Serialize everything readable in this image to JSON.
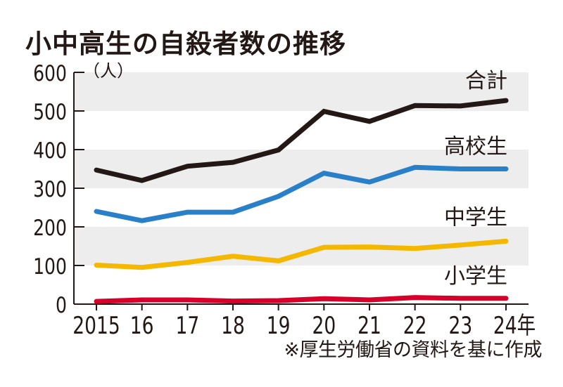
{
  "title": "小中高生の自殺者数の推移",
  "source_note": "※厚生労働省の資料を基に作成",
  "chart_data": {
    "type": "line",
    "title": "小中高生の自殺者数の推移",
    "xlabel": "",
    "ylabel": "",
    "y_unit": "（人）",
    "x_suffix": "年",
    "x": [
      "2015",
      "16",
      "17",
      "18",
      "19",
      "20",
      "21",
      "22",
      "23",
      "24"
    ],
    "x_tick_labels": [
      "2015",
      "16",
      "17",
      "18",
      "19",
      "20",
      "21",
      "22",
      "23",
      "24年"
    ],
    "ylim": [
      0,
      600
    ],
    "y_ticks": [
      0,
      100,
      200,
      300,
      400,
      500,
      600
    ],
    "grid": "alternating bands (500-600, 300-400, 100-200)",
    "legend": "inline labels at right end of each line",
    "series": [
      {
        "name": "合計",
        "color": "#231815",
        "values": [
          347,
          320,
          357,
          367,
          399,
          499,
          473,
          514,
          513,
          527
        ]
      },
      {
        "name": "高校生",
        "color": "#2a80c8",
        "values": [
          240,
          216,
          238,
          238,
          279,
          339,
          316,
          354,
          350,
          350
        ]
      },
      {
        "name": "中学生",
        "color": "#f5b800",
        "values": [
          101,
          95,
          108,
          124,
          112,
          147,
          148,
          144,
          153,
          163
        ]
      },
      {
        "name": "小学生",
        "color": "#d7002a",
        "values": [
          7,
          11,
          11,
          8,
          9,
          14,
          11,
          17,
          15,
          15
        ]
      }
    ],
    "band_color": "#ededed",
    "axis_color": "#231815"
  },
  "source": "※厚生労働省の資料を基に作成"
}
